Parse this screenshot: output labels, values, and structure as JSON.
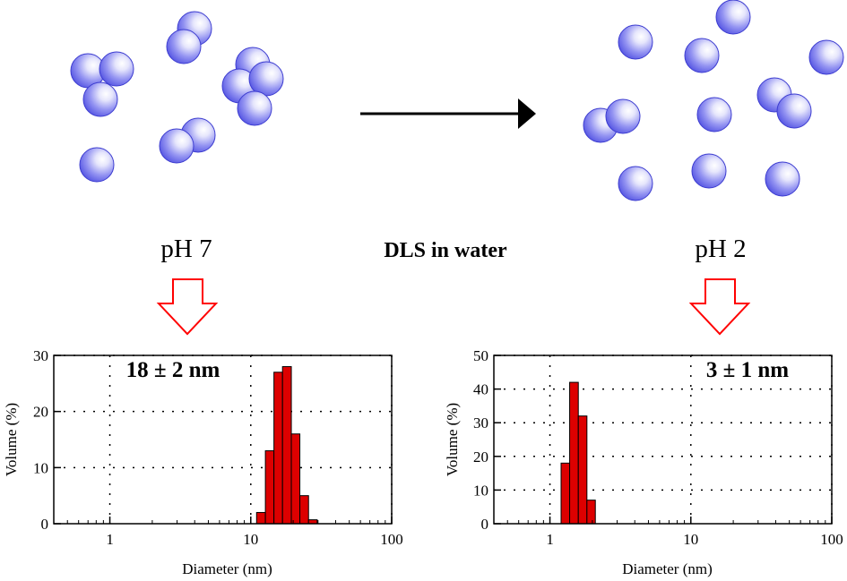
{
  "center_label": "DLS in water",
  "left_state": {
    "label": "pH 7"
  },
  "right_state": {
    "label": "pH 2"
  },
  "colors": {
    "bar": "#dd0000",
    "sphere": "#6a6af0",
    "arrow_outline": "#ff0000"
  },
  "chart_data": [
    {
      "type": "bar",
      "annotation": "18 ± 2 nm",
      "xlabel": "Diameter (nm)",
      "ylabel": "Volume (%)",
      "xscale": "log",
      "xlim": [
        0.4,
        100
      ],
      "ylim": [
        0,
        30
      ],
      "xticks": [
        1,
        10,
        100
      ],
      "yticks": [
        0,
        10,
        20,
        30
      ],
      "grid": true,
      "bars": [
        {
          "x0": 11.0,
          "x1": 12.7,
          "value": 2
        },
        {
          "x0": 12.7,
          "x1": 14.6,
          "value": 13
        },
        {
          "x0": 14.6,
          "x1": 16.8,
          "value": 27
        },
        {
          "x0": 16.8,
          "x1": 19.4,
          "value": 28
        },
        {
          "x0": 19.4,
          "x1": 22.3,
          "value": 16
        },
        {
          "x0": 22.3,
          "x1": 25.7,
          "value": 5
        },
        {
          "x0": 25.7,
          "x1": 29.6,
          "value": 0.7
        }
      ]
    },
    {
      "type": "bar",
      "annotation": "3 ± 1 nm",
      "xlabel": "Diameter (nm)",
      "ylabel": "Volume (%)",
      "xscale": "log",
      "xlim": [
        0.4,
        100
      ],
      "ylim": [
        0,
        50
      ],
      "xticks": [
        1,
        10,
        100
      ],
      "yticks": [
        0,
        10,
        20,
        30,
        40,
        50
      ],
      "grid": true,
      "bars": [
        {
          "x0": 1.2,
          "x1": 1.38,
          "value": 18
        },
        {
          "x0": 1.38,
          "x1": 1.59,
          "value": 42
        },
        {
          "x0": 1.59,
          "x1": 1.83,
          "value": 32
        },
        {
          "x0": 1.83,
          "x1": 2.1,
          "value": 7
        }
      ]
    }
  ]
}
